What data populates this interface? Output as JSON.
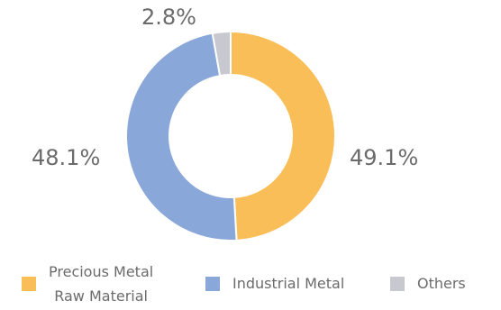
{
  "chart_data": {
    "type": "pie",
    "donut": true,
    "title": "",
    "legend_position": "bottom",
    "slices": [
      {
        "label": "Precious Metal\nRaw Material",
        "value": 49.1,
        "display": "49.1%",
        "color": "#F9BE58"
      },
      {
        "label": "Industrial Metal",
        "value": 48.1,
        "display": "48.1%",
        "color": "#8AA7D9"
      },
      {
        "label": "Others",
        "value": 2.8,
        "display": "2.8%",
        "color": "#C8C8D0"
      }
    ]
  }
}
